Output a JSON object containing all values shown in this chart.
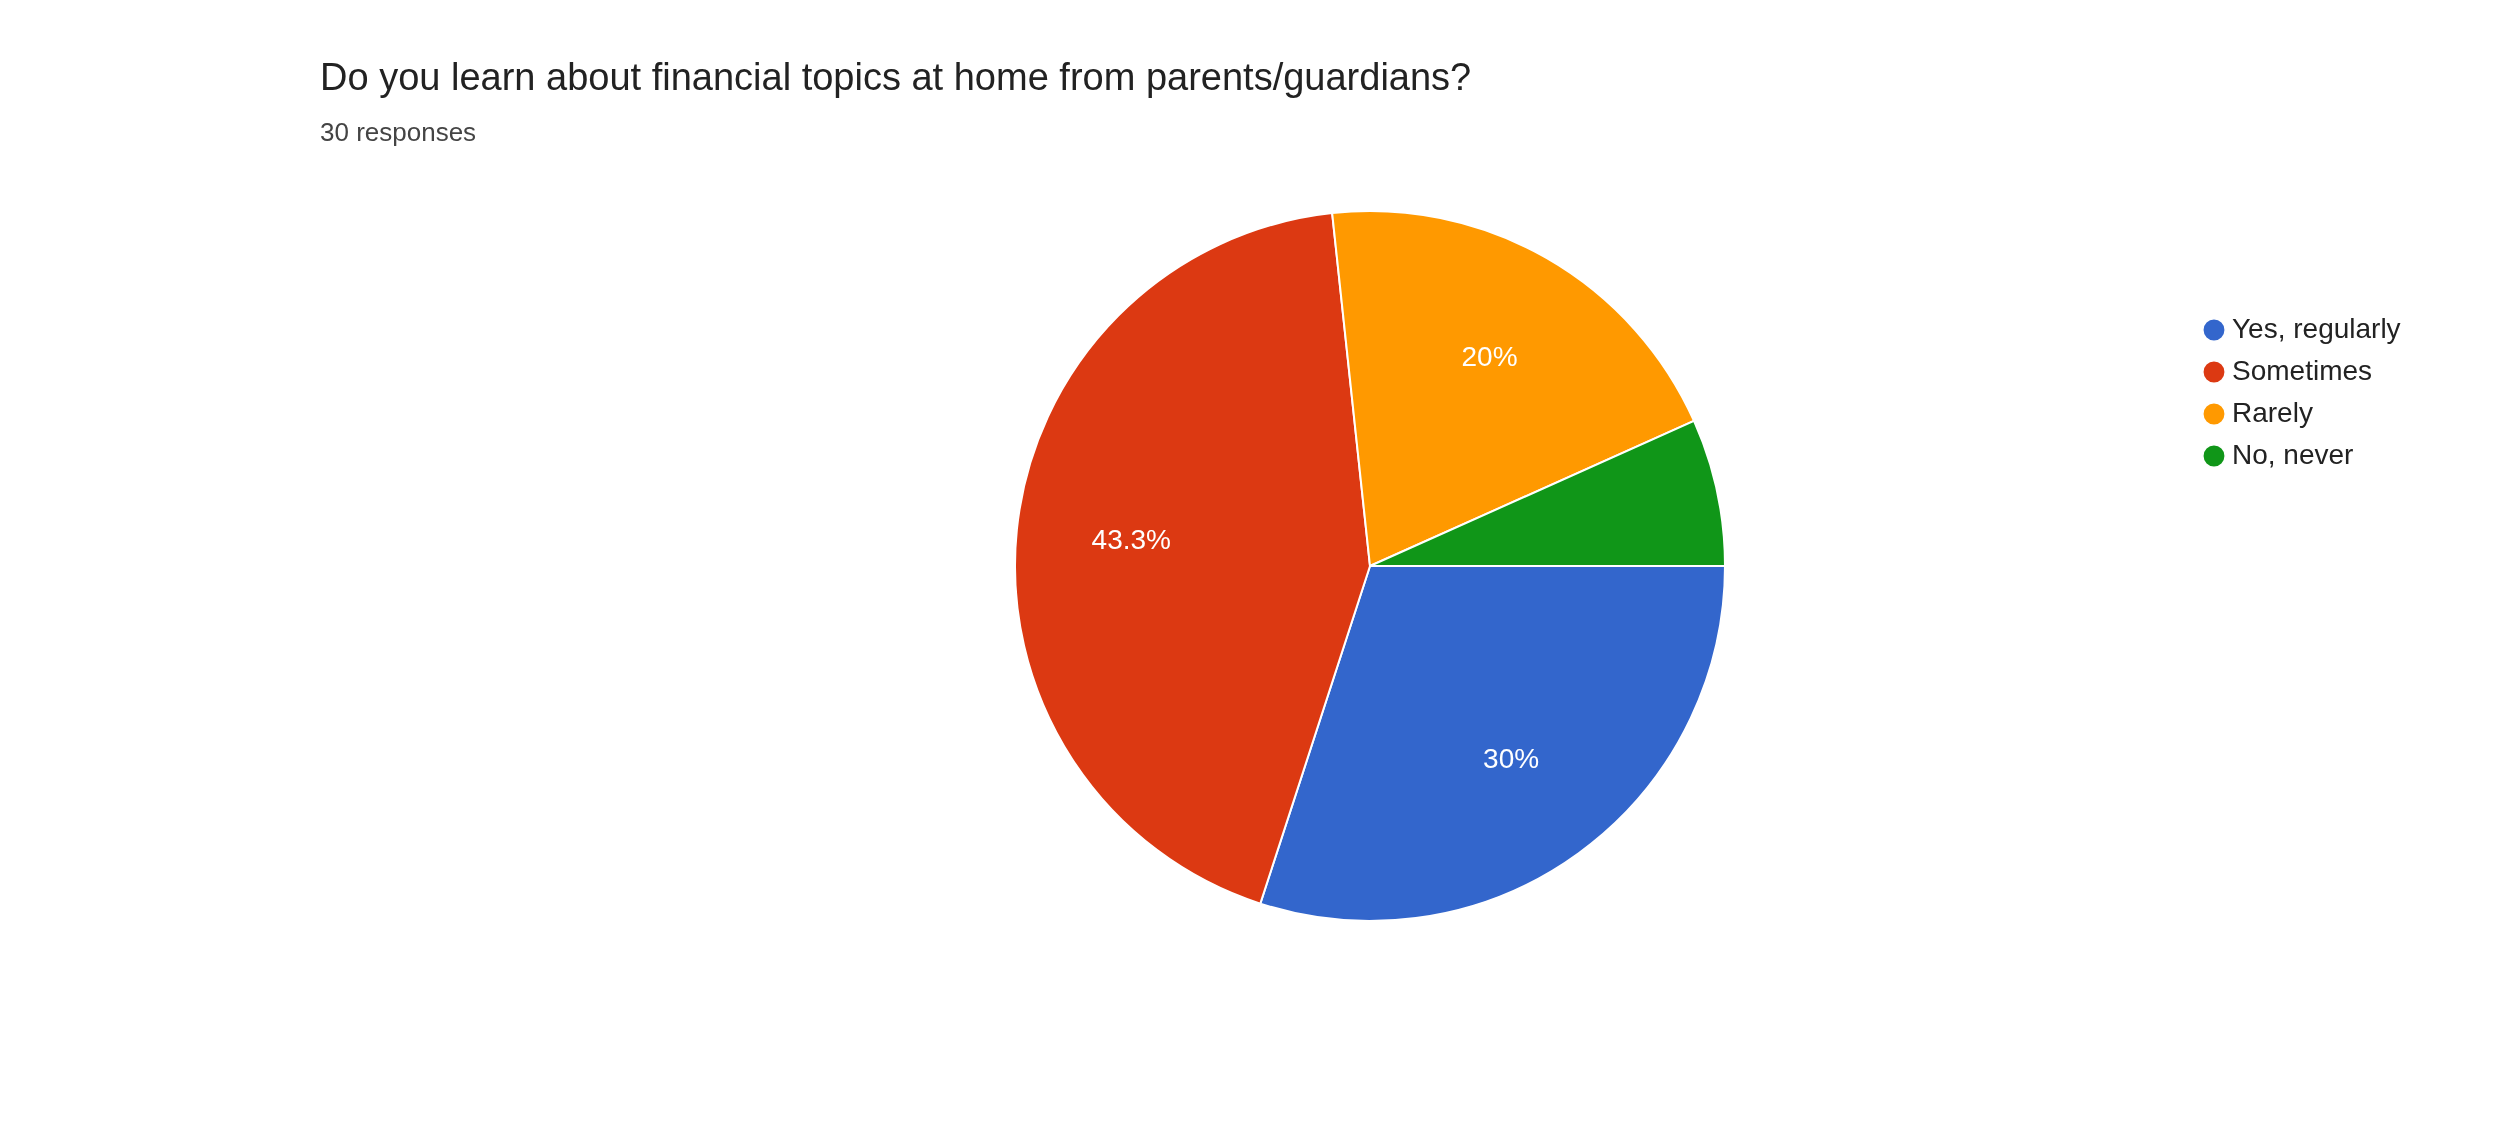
{
  "chart_data": {
    "type": "pie",
    "title": "Do you learn about financial topics at home from parents/guardians?",
    "subtitle": "30 responses",
    "categories": [
      "Yes, regularly",
      "Sometimes",
      "Rarely",
      "No, never"
    ],
    "values": [
      30,
      43.3,
      20,
      6.7
    ],
    "colors": [
      "#3366cc",
      "#dc3912",
      "#ff9900",
      "#109618"
    ],
    "value_labels": [
      "30%",
      "43.3%",
      "20%",
      null
    ],
    "legend": "right"
  }
}
